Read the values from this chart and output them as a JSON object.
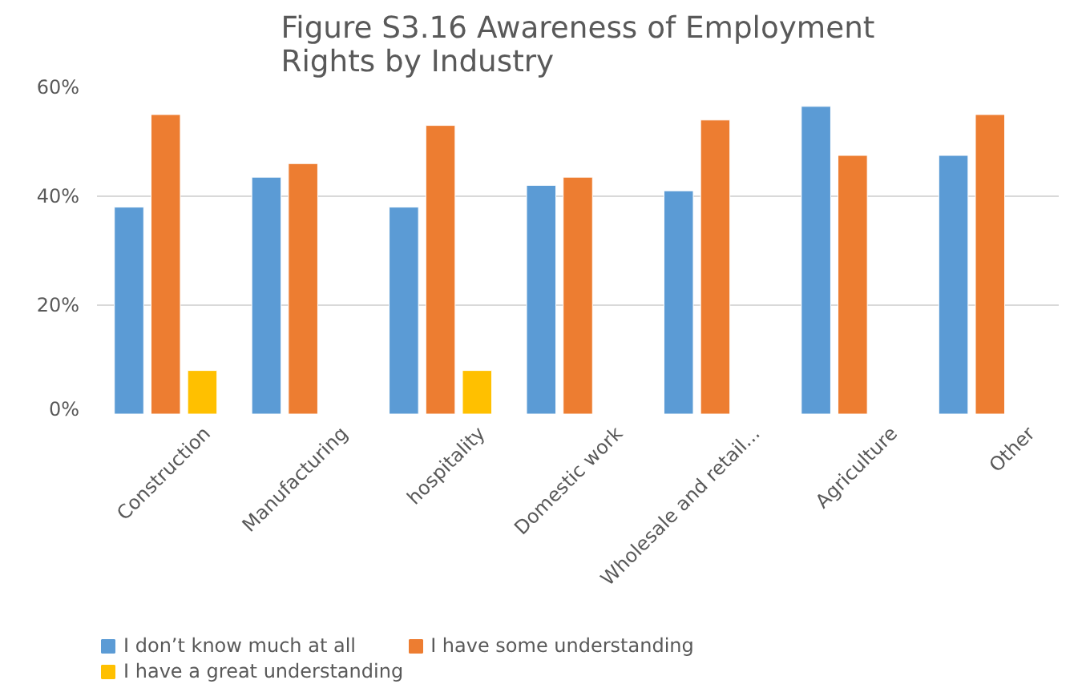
{
  "chart_data": {
    "type": "bar",
    "title": "Figure S3.16 Awareness of Employment Rights by Industry",
    "categories": [
      "Construction",
      "Manufacturing",
      "hospitality",
      "Domestic work",
      "Wholesale and retail...",
      "Agriculture",
      "Other"
    ],
    "series": [
      {
        "name": "I don’t know much at all",
        "color": "#5b9bd5",
        "values": [
          38,
          43.5,
          38,
          42,
          41,
          56.5,
          47.5
        ]
      },
      {
        "name": "I have some understanding",
        "color": "#ed7d31",
        "values": [
          55,
          46,
          53,
          43.5,
          54,
          47.5,
          55
        ]
      },
      {
        "name": "I have a great understanding",
        "color": "#ffc000",
        "values": [
          8,
          null,
          8,
          null,
          null,
          null,
          null
        ]
      }
    ],
    "ylim": [
      0,
      60
    ],
    "yticks": [
      {
        "value": 0,
        "label": "0%"
      },
      {
        "value": 20,
        "label": "20%"
      },
      {
        "value": 40,
        "label": "40%"
      },
      {
        "value": 60,
        "label": "60%"
      }
    ],
    "grid": "y",
    "legend": "bottom"
  }
}
